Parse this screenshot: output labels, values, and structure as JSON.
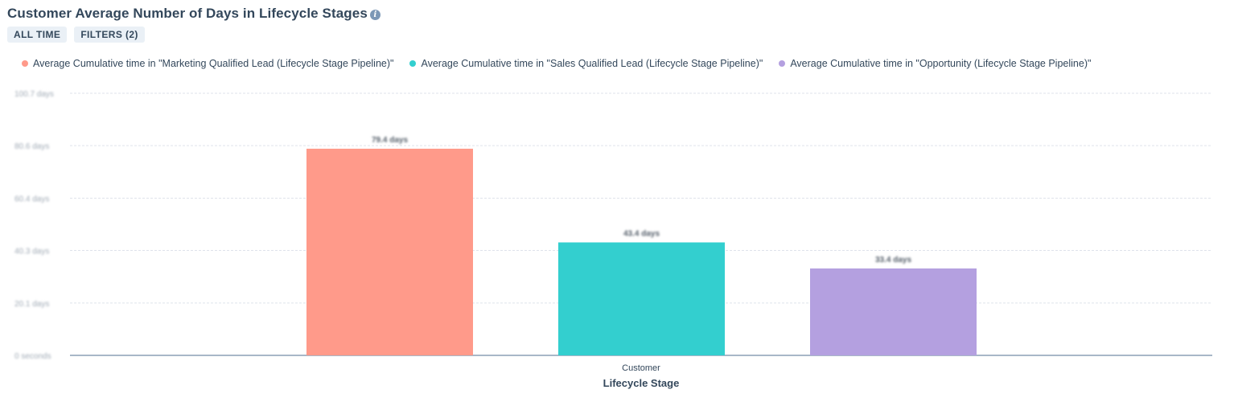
{
  "header": {
    "title": "Customer Average Number of Days in Lifecycle Stages",
    "tags": [
      "ALL TIME",
      "FILTERS (2)"
    ]
  },
  "colors": {
    "mql": "#ff9a8a",
    "sql": "#33cfcf",
    "opp": "#b4a0e0",
    "grid": "#dfe3eb",
    "axis": "#516f90"
  },
  "chart_data": {
    "type": "bar",
    "categories": [
      "Customer"
    ],
    "series": [
      {
        "name": "Average Cumulative time in \"Marketing Qualified Lead (Lifecycle Stage Pipeline)\"",
        "values": [
          79.4
        ],
        "label": "79.4 days",
        "color": "#ff9a8a"
      },
      {
        "name": "Average Cumulative time in \"Sales Qualified Lead (Lifecycle Stage Pipeline)\"",
        "values": [
          43.4
        ],
        "label": "43.4 days",
        "color": "#33cfcf"
      },
      {
        "name": "Average Cumulative time in \"Opportunity (Lifecycle Stage Pipeline)\"",
        "values": [
          33.4
        ],
        "label": "33.4 days",
        "color": "#b4a0e0"
      }
    ],
    "y_ticks": [
      {
        "value": 0,
        "label": "0 seconds"
      },
      {
        "value": 20.1,
        "label": "20.1 days"
      },
      {
        "value": 40.3,
        "label": "40.3 days"
      },
      {
        "value": 60.4,
        "label": "60.4 days"
      },
      {
        "value": 80.6,
        "label": "80.6 days"
      },
      {
        "value": 100.7,
        "label": "100.7 days"
      }
    ],
    "ylim": [
      0,
      100.7
    ],
    "xlabel": "Lifecycle Stage",
    "ylabel": "",
    "grid": true,
    "legend_position": "top-left"
  }
}
